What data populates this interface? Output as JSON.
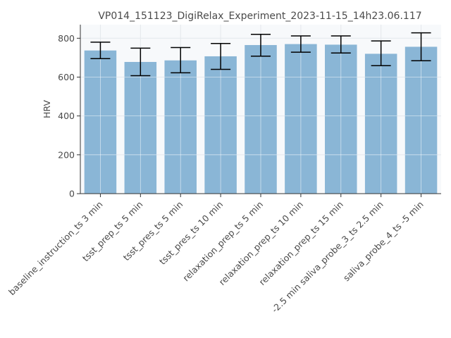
{
  "chart_data": {
    "type": "bar",
    "title": "VP014_151123_DigiRelax_Experiment_2023-11-15_14h23.06.117",
    "xlabel": "",
    "ylabel": "HRV",
    "ylim": [
      0,
      870
    ],
    "yticks": [
      0,
      200,
      400,
      600,
      800
    ],
    "grid": true,
    "categories": [
      "baseline_instruction_ts 3 min",
      "tsst_prep_ts 5 min",
      "tsst_pres_ts 5 min",
      "tsst_pres_ts 10 min",
      "relaxation_prep_ts 5 min",
      "relaxation_prep_ts 10 min",
      "relaxation_prep_ts 15 min",
      "-2.5 min saliva_probe_3_ts 2.5 min",
      "saliva_probe_4_ts -5 min"
    ],
    "values": [
      737,
      678,
      686,
      707,
      765,
      770,
      767,
      720,
      756
    ],
    "errors": [
      [
        695,
        780
      ],
      [
        607,
        749
      ],
      [
        622,
        752
      ],
      [
        640,
        773
      ],
      [
        708,
        820
      ],
      [
        728,
        812
      ],
      [
        724,
        812
      ],
      [
        659,
        786
      ],
      [
        684,
        828
      ]
    ],
    "colors": {
      "bar": "#8ab6d6",
      "error": "#000000",
      "plot_bg": "#f7f9fb",
      "grid": "#e4e8ec",
      "axis": "#333333"
    }
  }
}
